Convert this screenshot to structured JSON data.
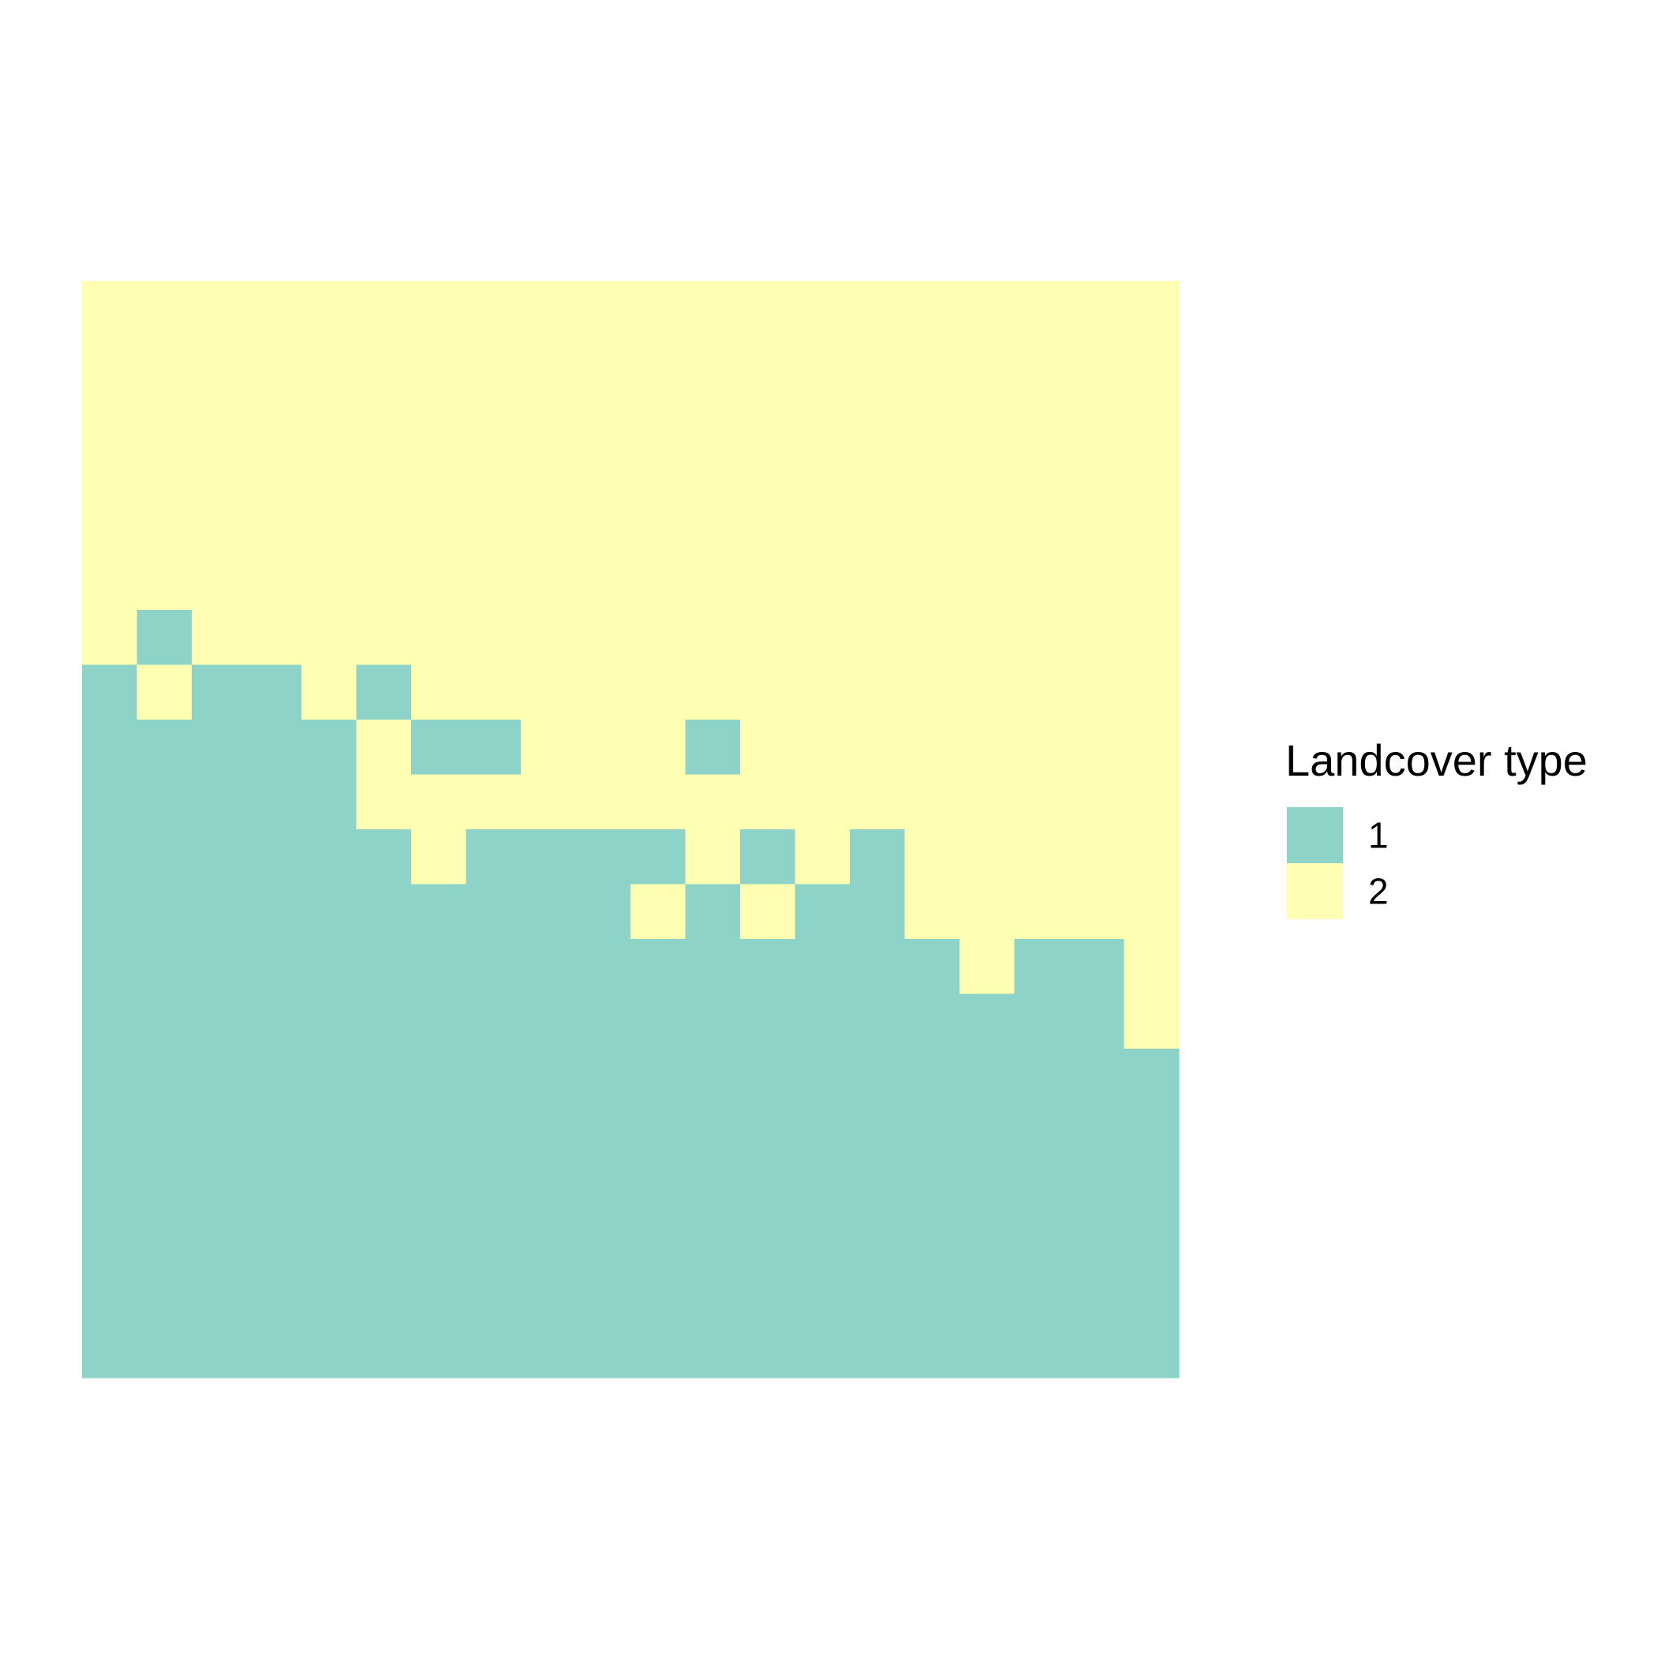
{
  "chart_data": {
    "type": "heatmap",
    "title": "",
    "xlabel": "",
    "ylabel": "",
    "ncols": 20,
    "nrows": 20,
    "grid": false,
    "axes_visible": false,
    "legend_placement": "right",
    "legend": {
      "title": "Landcover type",
      "entries": [
        {
          "value": 1,
          "label": "1",
          "color": "#8ed3c7"
        },
        {
          "value": 2,
          "label": "2",
          "color": "#ffffb3"
        }
      ]
    },
    "cells": [
      [
        2,
        2,
        2,
        2,
        2,
        2,
        2,
        2,
        2,
        2,
        2,
        2,
        2,
        2,
        2,
        2,
        2,
        2,
        2,
        2
      ],
      [
        2,
        2,
        2,
        2,
        2,
        2,
        2,
        2,
        2,
        2,
        2,
        2,
        2,
        2,
        2,
        2,
        2,
        2,
        2,
        2
      ],
      [
        2,
        2,
        2,
        2,
        2,
        2,
        2,
        2,
        2,
        2,
        2,
        2,
        2,
        2,
        2,
        2,
        2,
        2,
        2,
        2
      ],
      [
        2,
        2,
        2,
        2,
        2,
        2,
        2,
        2,
        2,
        2,
        2,
        2,
        2,
        2,
        2,
        2,
        2,
        2,
        2,
        2
      ],
      [
        2,
        2,
        2,
        2,
        2,
        2,
        2,
        2,
        2,
        2,
        2,
        2,
        2,
        2,
        2,
        2,
        2,
        2,
        2,
        2
      ],
      [
        2,
        2,
        2,
        2,
        2,
        2,
        2,
        2,
        2,
        2,
        2,
        2,
        2,
        2,
        2,
        2,
        2,
        2,
        2,
        2
      ],
      [
        2,
        1,
        2,
        2,
        2,
        2,
        2,
        2,
        2,
        2,
        2,
        2,
        2,
        2,
        2,
        2,
        2,
        2,
        2,
        2
      ],
      [
        1,
        2,
        1,
        1,
        2,
        1,
        2,
        2,
        2,
        2,
        2,
        2,
        2,
        2,
        2,
        2,
        2,
        2,
        2,
        2
      ],
      [
        1,
        1,
        1,
        1,
        1,
        2,
        1,
        1,
        2,
        2,
        2,
        1,
        2,
        2,
        2,
        2,
        2,
        2,
        2,
        2
      ],
      [
        1,
        1,
        1,
        1,
        1,
        2,
        2,
        2,
        2,
        2,
        2,
        2,
        2,
        2,
        2,
        2,
        2,
        2,
        2,
        2
      ],
      [
        1,
        1,
        1,
        1,
        1,
        1,
        2,
        1,
        1,
        1,
        1,
        2,
        1,
        2,
        1,
        2,
        2,
        2,
        2,
        2
      ],
      [
        1,
        1,
        1,
        1,
        1,
        1,
        1,
        1,
        1,
        1,
        2,
        1,
        2,
        1,
        1,
        2,
        2,
        2,
        2,
        2
      ],
      [
        1,
        1,
        1,
        1,
        1,
        1,
        1,
        1,
        1,
        1,
        1,
        1,
        1,
        1,
        1,
        1,
        2,
        1,
        1,
        2
      ],
      [
        1,
        1,
        1,
        1,
        1,
        1,
        1,
        1,
        1,
        1,
        1,
        1,
        1,
        1,
        1,
        1,
        1,
        1,
        1,
        2
      ],
      [
        1,
        1,
        1,
        1,
        1,
        1,
        1,
        1,
        1,
        1,
        1,
        1,
        1,
        1,
        1,
        1,
        1,
        1,
        1,
        1
      ],
      [
        1,
        1,
        1,
        1,
        1,
        1,
        1,
        1,
        1,
        1,
        1,
        1,
        1,
        1,
        1,
        1,
        1,
        1,
        1,
        1
      ],
      [
        1,
        1,
        1,
        1,
        1,
        1,
        1,
        1,
        1,
        1,
        1,
        1,
        1,
        1,
        1,
        1,
        1,
        1,
        1,
        1
      ],
      [
        1,
        1,
        1,
        1,
        1,
        1,
        1,
        1,
        1,
        1,
        1,
        1,
        1,
        1,
        1,
        1,
        1,
        1,
        1,
        1
      ],
      [
        1,
        1,
        1,
        1,
        1,
        1,
        1,
        1,
        1,
        1,
        1,
        1,
        1,
        1,
        1,
        1,
        1,
        1,
        1,
        1
      ],
      [
        1,
        1,
        1,
        1,
        1,
        1,
        1,
        1,
        1,
        1,
        1,
        1,
        1,
        1,
        1,
        1,
        1,
        1,
        1,
        1
      ]
    ]
  }
}
